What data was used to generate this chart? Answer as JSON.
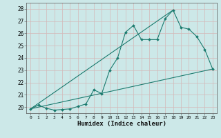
{
  "title": "",
  "xlabel": "Humidex (Indice chaleur)",
  "bg_color": "#cce8e8",
  "grid_color": "#d4b8b8",
  "line_color": "#1a7a6e",
  "xlim": [
    -0.5,
    23.5
  ],
  "ylim": [
    19.5,
    28.5
  ],
  "xticks": [
    0,
    1,
    2,
    3,
    4,
    5,
    6,
    7,
    8,
    9,
    10,
    11,
    12,
    13,
    14,
    15,
    16,
    17,
    18,
    19,
    20,
    21,
    22,
    23
  ],
  "yticks": [
    20,
    21,
    22,
    23,
    24,
    25,
    26,
    27,
    28
  ],
  "main_x": [
    0,
    1,
    2,
    3,
    4,
    5,
    6,
    7,
    8,
    9,
    10,
    11,
    12,
    13,
    14,
    15,
    16,
    17,
    18,
    19,
    20,
    21,
    22,
    23
  ],
  "main_y": [
    19.85,
    20.15,
    19.9,
    19.75,
    19.8,
    19.85,
    20.05,
    20.25,
    21.4,
    21.1,
    23.0,
    24.0,
    26.1,
    26.65,
    25.5,
    25.5,
    25.5,
    27.2,
    27.9,
    26.5,
    26.35,
    25.75,
    24.7,
    23.1
  ],
  "line1_x": [
    0,
    23
  ],
  "line1_y": [
    19.85,
    23.1
  ],
  "line2_x": [
    0,
    18
  ],
  "line2_y": [
    19.85,
    27.9
  ]
}
